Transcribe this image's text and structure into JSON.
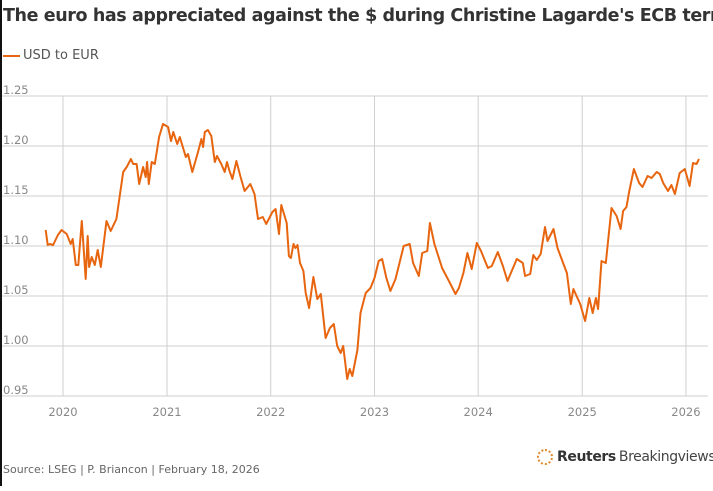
{
  "header": {
    "title": "The euro has appreciated against the $ during Christine Lagarde's ECB term"
  },
  "footer": {
    "source": "Source: LSEG | P. Briancon | February 18, 2026",
    "brand_bold": "Reuters",
    "brand_rest": "Breakingviews"
  },
  "chart_data": {
    "type": "line",
    "title": "The euro has appreciated against the $ during Christine Lagarde's ECB term",
    "xlabel": "",
    "ylabel": "",
    "ylim": [
      0.95,
      1.25
    ],
    "xlim": [
      "2019-10-15",
      "2026-03-01"
    ],
    "grid": true,
    "legend_position": "top-left",
    "y_ticks": [
      "0.95",
      "1.00",
      "1.05",
      "1.10",
      "1.15",
      "1.20",
      "1.25"
    ],
    "x_ticks": [
      "2020",
      "2021",
      "2022",
      "2023",
      "2024",
      "2025",
      "2026"
    ],
    "series": [
      {
        "name": "USD to EUR",
        "color": "#e8650f",
        "points": [
          [
            "2019-11-01",
            1.116
          ],
          [
            "2019-11-08",
            1.101
          ],
          [
            "2019-11-16",
            1.102
          ],
          [
            "2019-11-27",
            1.101
          ],
          [
            "2019-12-14",
            1.111
          ],
          [
            "2019-12-27",
            1.116
          ],
          [
            "2020-01-14",
            1.112
          ],
          [
            "2020-01-28",
            1.102
          ],
          [
            "2020-02-04",
            1.107
          ],
          [
            "2020-02-15",
            1.081
          ],
          [
            "2020-02-24",
            1.081
          ],
          [
            "2020-03-07",
            1.125
          ],
          [
            "2020-03-21",
            1.067
          ],
          [
            "2020-03-28",
            1.11
          ],
          [
            "2020-04-02",
            1.079
          ],
          [
            "2020-04-11",
            1.089
          ],
          [
            "2020-04-22",
            1.081
          ],
          [
            "2020-05-02",
            1.096
          ],
          [
            "2020-05-13",
            1.079
          ],
          [
            "2020-06-02",
            1.125
          ],
          [
            "2020-06-17",
            1.115
          ],
          [
            "2020-07-07",
            1.127
          ],
          [
            "2020-07-31",
            1.174
          ],
          [
            "2020-08-12",
            1.179
          ],
          [
            "2020-08-27",
            1.187
          ],
          [
            "2020-09-04",
            1.182
          ],
          [
            "2020-09-16",
            1.182
          ],
          [
            "2020-09-25",
            1.162
          ],
          [
            "2020-10-09",
            1.179
          ],
          [
            "2020-10-18",
            1.169
          ],
          [
            "2020-10-23",
            1.184
          ],
          [
            "2020-10-29",
            1.162
          ],
          [
            "2020-11-08",
            1.184
          ],
          [
            "2020-11-19",
            1.182
          ],
          [
            "2020-12-04",
            1.209
          ],
          [
            "2020-12-18",
            1.222
          ],
          [
            "2021-01-05",
            1.219
          ],
          [
            "2021-01-15",
            1.205
          ],
          [
            "2021-01-23",
            1.214
          ],
          [
            "2021-02-06",
            1.202
          ],
          [
            "2021-02-15",
            1.209
          ],
          [
            "2021-03-08",
            1.189
          ],
          [
            "2021-03-16",
            1.192
          ],
          [
            "2021-03-31",
            1.174
          ],
          [
            "2021-04-20",
            1.194
          ],
          [
            "2021-05-02",
            1.207
          ],
          [
            "2021-05-08",
            1.199
          ],
          [
            "2021-05-14",
            1.214
          ],
          [
            "2021-05-25",
            1.216
          ],
          [
            "2021-06-06",
            1.21
          ],
          [
            "2021-06-18",
            1.184
          ],
          [
            "2021-06-26",
            1.19
          ],
          [
            "2021-07-11",
            1.182
          ],
          [
            "2021-07-23",
            1.174
          ],
          [
            "2021-07-31",
            1.184
          ],
          [
            "2021-08-09",
            1.175
          ],
          [
            "2021-08-19",
            1.167
          ],
          [
            "2021-09-02",
            1.185
          ],
          [
            "2021-09-16",
            1.17
          ],
          [
            "2021-10-01",
            1.155
          ],
          [
            "2021-10-21",
            1.162
          ],
          [
            "2021-11-05",
            1.152
          ],
          [
            "2021-11-17",
            1.127
          ],
          [
            "2021-12-04",
            1.129
          ],
          [
            "2021-12-16",
            1.122
          ],
          [
            "2022-01-07",
            1.134
          ],
          [
            "2022-01-18",
            1.137
          ],
          [
            "2022-01-30",
            1.112
          ],
          [
            "2022-02-07",
            1.141
          ],
          [
            "2022-02-26",
            1.123
          ],
          [
            "2022-03-06",
            1.09
          ],
          [
            "2022-03-13",
            1.088
          ],
          [
            "2022-03-22",
            1.102
          ],
          [
            "2022-03-29",
            1.098
          ],
          [
            "2022-04-05",
            1.101
          ],
          [
            "2022-04-14",
            1.083
          ],
          [
            "2022-04-26",
            1.075
          ],
          [
            "2022-05-04",
            1.053
          ],
          [
            "2022-05-16",
            1.038
          ],
          [
            "2022-05-31",
            1.069
          ],
          [
            "2022-06-14",
            1.047
          ],
          [
            "2022-06-26",
            1.052
          ],
          [
            "2022-07-13",
            1.008
          ],
          [
            "2022-07-28",
            1.018
          ],
          [
            "2022-08-11",
            1.022
          ],
          [
            "2022-08-23",
            1.0
          ],
          [
            "2022-09-04",
            0.993
          ],
          [
            "2022-09-13",
            1.0
          ],
          [
            "2022-09-27",
            0.967
          ],
          [
            "2022-10-06",
            0.977
          ],
          [
            "2022-10-15",
            0.97
          ],
          [
            "2022-11-02",
            0.996
          ],
          [
            "2022-11-13",
            1.033
          ],
          [
            "2022-12-01",
            1.053
          ],
          [
            "2022-12-18",
            1.058
          ],
          [
            "2023-01-01",
            1.068
          ],
          [
            "2023-01-16",
            1.085
          ],
          [
            "2023-01-28",
            1.087
          ],
          [
            "2023-02-12",
            1.068
          ],
          [
            "2023-02-26",
            1.055
          ],
          [
            "2023-03-16",
            1.067
          ],
          [
            "2023-04-14",
            1.1
          ],
          [
            "2023-05-05",
            1.102
          ],
          [
            "2023-05-17",
            1.083
          ],
          [
            "2023-06-06",
            1.07
          ],
          [
            "2023-06-18",
            1.093
          ],
          [
            "2023-07-06",
            1.095
          ],
          [
            "2023-07-15",
            1.123
          ],
          [
            "2023-07-31",
            1.102
          ],
          [
            "2023-08-27",
            1.078
          ],
          [
            "2023-09-20",
            1.065
          ],
          [
            "2023-10-13",
            1.052
          ],
          [
            "2023-10-25",
            1.058
          ],
          [
            "2023-11-10",
            1.073
          ],
          [
            "2023-11-24",
            1.093
          ],
          [
            "2023-12-09",
            1.077
          ],
          [
            "2023-12-27",
            1.103
          ],
          [
            "2024-01-11",
            1.095
          ],
          [
            "2024-02-04",
            1.078
          ],
          [
            "2024-02-18",
            1.08
          ],
          [
            "2024-03-10",
            1.094
          ],
          [
            "2024-03-28",
            1.08
          ],
          [
            "2024-04-13",
            1.065
          ],
          [
            "2024-05-16",
            1.087
          ],
          [
            "2024-06-06",
            1.083
          ],
          [
            "2024-06-14",
            1.07
          ],
          [
            "2024-07-02",
            1.072
          ],
          [
            "2024-07-13",
            1.091
          ],
          [
            "2024-07-25",
            1.086
          ],
          [
            "2024-08-08",
            1.092
          ],
          [
            "2024-08-23",
            1.119
          ],
          [
            "2024-09-01",
            1.105
          ],
          [
            "2024-09-22",
            1.117
          ],
          [
            "2024-10-06",
            1.098
          ],
          [
            "2024-10-27",
            1.082
          ],
          [
            "2024-11-08",
            1.073
          ],
          [
            "2024-11-22",
            1.042
          ],
          [
            "2024-12-01",
            1.057
          ],
          [
            "2024-12-25",
            1.042
          ],
          [
            "2025-01-11",
            1.025
          ],
          [
            "2025-01-26",
            1.048
          ],
          [
            "2025-02-07",
            1.033
          ],
          [
            "2025-02-18",
            1.048
          ],
          [
            "2025-02-26",
            1.037
          ],
          [
            "2025-03-10",
            1.085
          ],
          [
            "2025-03-25",
            1.083
          ],
          [
            "2025-04-14",
            1.138
          ],
          [
            "2025-05-02",
            1.13
          ],
          [
            "2025-05-16",
            1.117
          ],
          [
            "2025-05-25",
            1.135
          ],
          [
            "2025-06-06",
            1.139
          ],
          [
            "2025-06-15",
            1.154
          ],
          [
            "2025-07-02",
            1.177
          ],
          [
            "2025-07-20",
            1.163
          ],
          [
            "2025-08-01",
            1.159
          ],
          [
            "2025-08-19",
            1.17
          ],
          [
            "2025-09-02",
            1.168
          ],
          [
            "2025-09-20",
            1.174
          ],
          [
            "2025-10-01",
            1.172
          ],
          [
            "2025-10-13",
            1.163
          ],
          [
            "2025-10-30",
            1.155
          ],
          [
            "2025-11-11",
            1.161
          ],
          [
            "2025-11-23",
            1.152
          ],
          [
            "2025-12-10",
            1.173
          ],
          [
            "2025-12-28",
            1.177
          ],
          [
            "2026-01-14",
            1.16
          ],
          [
            "2026-01-26",
            1.183
          ],
          [
            "2026-02-07",
            1.182
          ],
          [
            "2026-02-16",
            1.187
          ]
        ]
      }
    ]
  }
}
